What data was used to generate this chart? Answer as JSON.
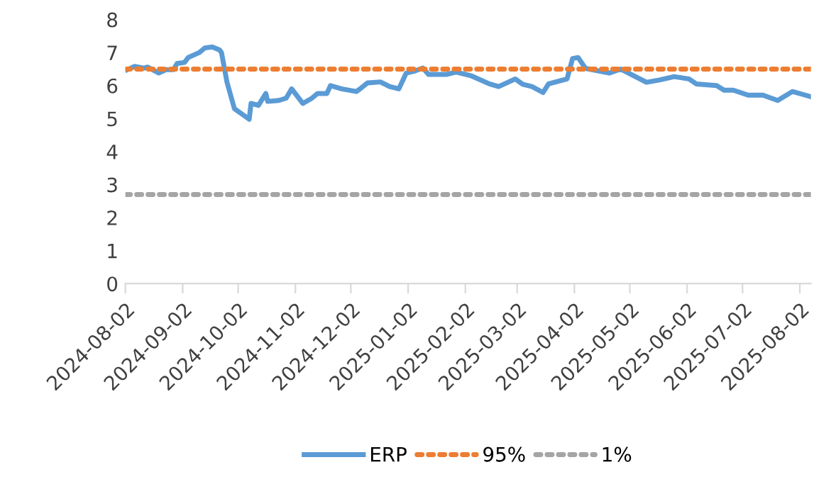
{
  "chart_data": {
    "type": "line",
    "xlim": [
      "2024-08-02",
      "2025-08-08"
    ],
    "xticks": [
      "2024-08-02",
      "2024-09-02",
      "2024-10-02",
      "2024-11-02",
      "2024-12-02",
      "2025-01-02",
      "2025-02-02",
      "2025-03-02",
      "2025-04-02",
      "2025-05-02",
      "2025-06-02",
      "2025-07-02",
      "2025-08-02"
    ],
    "ylim": [
      0,
      8
    ],
    "yticks": [
      0,
      1,
      2,
      3,
      4,
      5,
      6,
      7,
      8
    ],
    "grid": false,
    "legend": "bottom",
    "series": [
      {
        "name": "ERP",
        "color": "#5b9bd5",
        "line_style": "solid",
        "x": [
          "2024-08-03",
          "2024-08-07",
          "2024-08-12",
          "2024-08-14",
          "2024-08-20",
          "2024-08-24",
          "2024-08-28",
          "2024-08-30",
          "2024-09-03",
          "2024-09-05",
          "2024-09-11",
          "2024-09-14",
          "2024-09-18",
          "2024-09-22",
          "2024-09-23",
          "2024-09-26",
          "2024-09-30",
          "2024-10-08",
          "2024-10-09",
          "2024-10-13",
          "2024-10-17",
          "2024-10-18",
          "2024-10-24",
          "2024-10-28",
          "2024-10-31",
          "2024-11-06",
          "2024-11-11",
          "2024-11-14",
          "2024-11-19",
          "2024-11-21",
          "2024-11-27",
          "2024-12-05",
          "2024-12-07",
          "2024-12-11",
          "2024-12-18",
          "2024-12-23",
          "2024-12-28",
          "2025-01-01",
          "2025-01-05",
          "2025-01-10",
          "2025-01-13",
          "2025-01-23",
          "2025-01-28",
          "2025-02-05",
          "2025-02-15",
          "2025-02-20",
          "2025-03-01",
          "2025-03-05",
          "2025-03-10",
          "2025-03-16",
          "2025-03-19",
          "2025-03-29",
          "2025-04-01",
          "2025-04-04",
          "2025-04-08",
          "2025-04-21",
          "2025-04-27",
          "2025-05-11",
          "2025-05-18",
          "2025-05-26",
          "2025-06-03",
          "2025-06-07",
          "2025-06-18",
          "2025-06-22",
          "2025-06-27",
          "2025-07-05",
          "2025-07-13",
          "2025-07-21",
          "2025-07-29",
          "2025-08-05",
          "2025-08-08"
        ],
        "values": [
          6.48,
          6.58,
          6.53,
          6.56,
          6.38,
          6.48,
          6.48,
          6.67,
          6.7,
          6.85,
          7.0,
          7.14,
          7.17,
          7.08,
          7.0,
          6.1,
          5.3,
          4.98,
          5.46,
          5.4,
          5.76,
          5.52,
          5.55,
          5.62,
          5.9,
          5.46,
          5.62,
          5.76,
          5.76,
          6.0,
          5.9,
          5.82,
          5.9,
          6.08,
          6.11,
          5.97,
          5.9,
          6.38,
          6.43,
          6.53,
          6.34,
          6.34,
          6.41,
          6.3,
          6.05,
          5.97,
          6.2,
          6.04,
          5.97,
          5.79,
          6.05,
          6.2,
          6.82,
          6.85,
          6.52,
          6.38,
          6.5,
          6.1,
          6.17,
          6.27,
          6.2,
          6.05,
          6.0,
          5.86,
          5.86,
          5.71,
          5.71,
          5.55,
          5.82,
          5.71,
          5.66
        ]
      },
      {
        "name": "95%",
        "color": "#ed7d31",
        "line_style": "dotted",
        "x": [
          "2024-08-02",
          "2025-08-08"
        ],
        "values": [
          6.5,
          6.5
        ]
      },
      {
        "name": "1%",
        "color": "#a5a5a5",
        "line_style": "dotted",
        "x": [
          "2024-08-02",
          "2025-08-08"
        ],
        "values": [
          2.7,
          2.7
        ]
      }
    ]
  }
}
